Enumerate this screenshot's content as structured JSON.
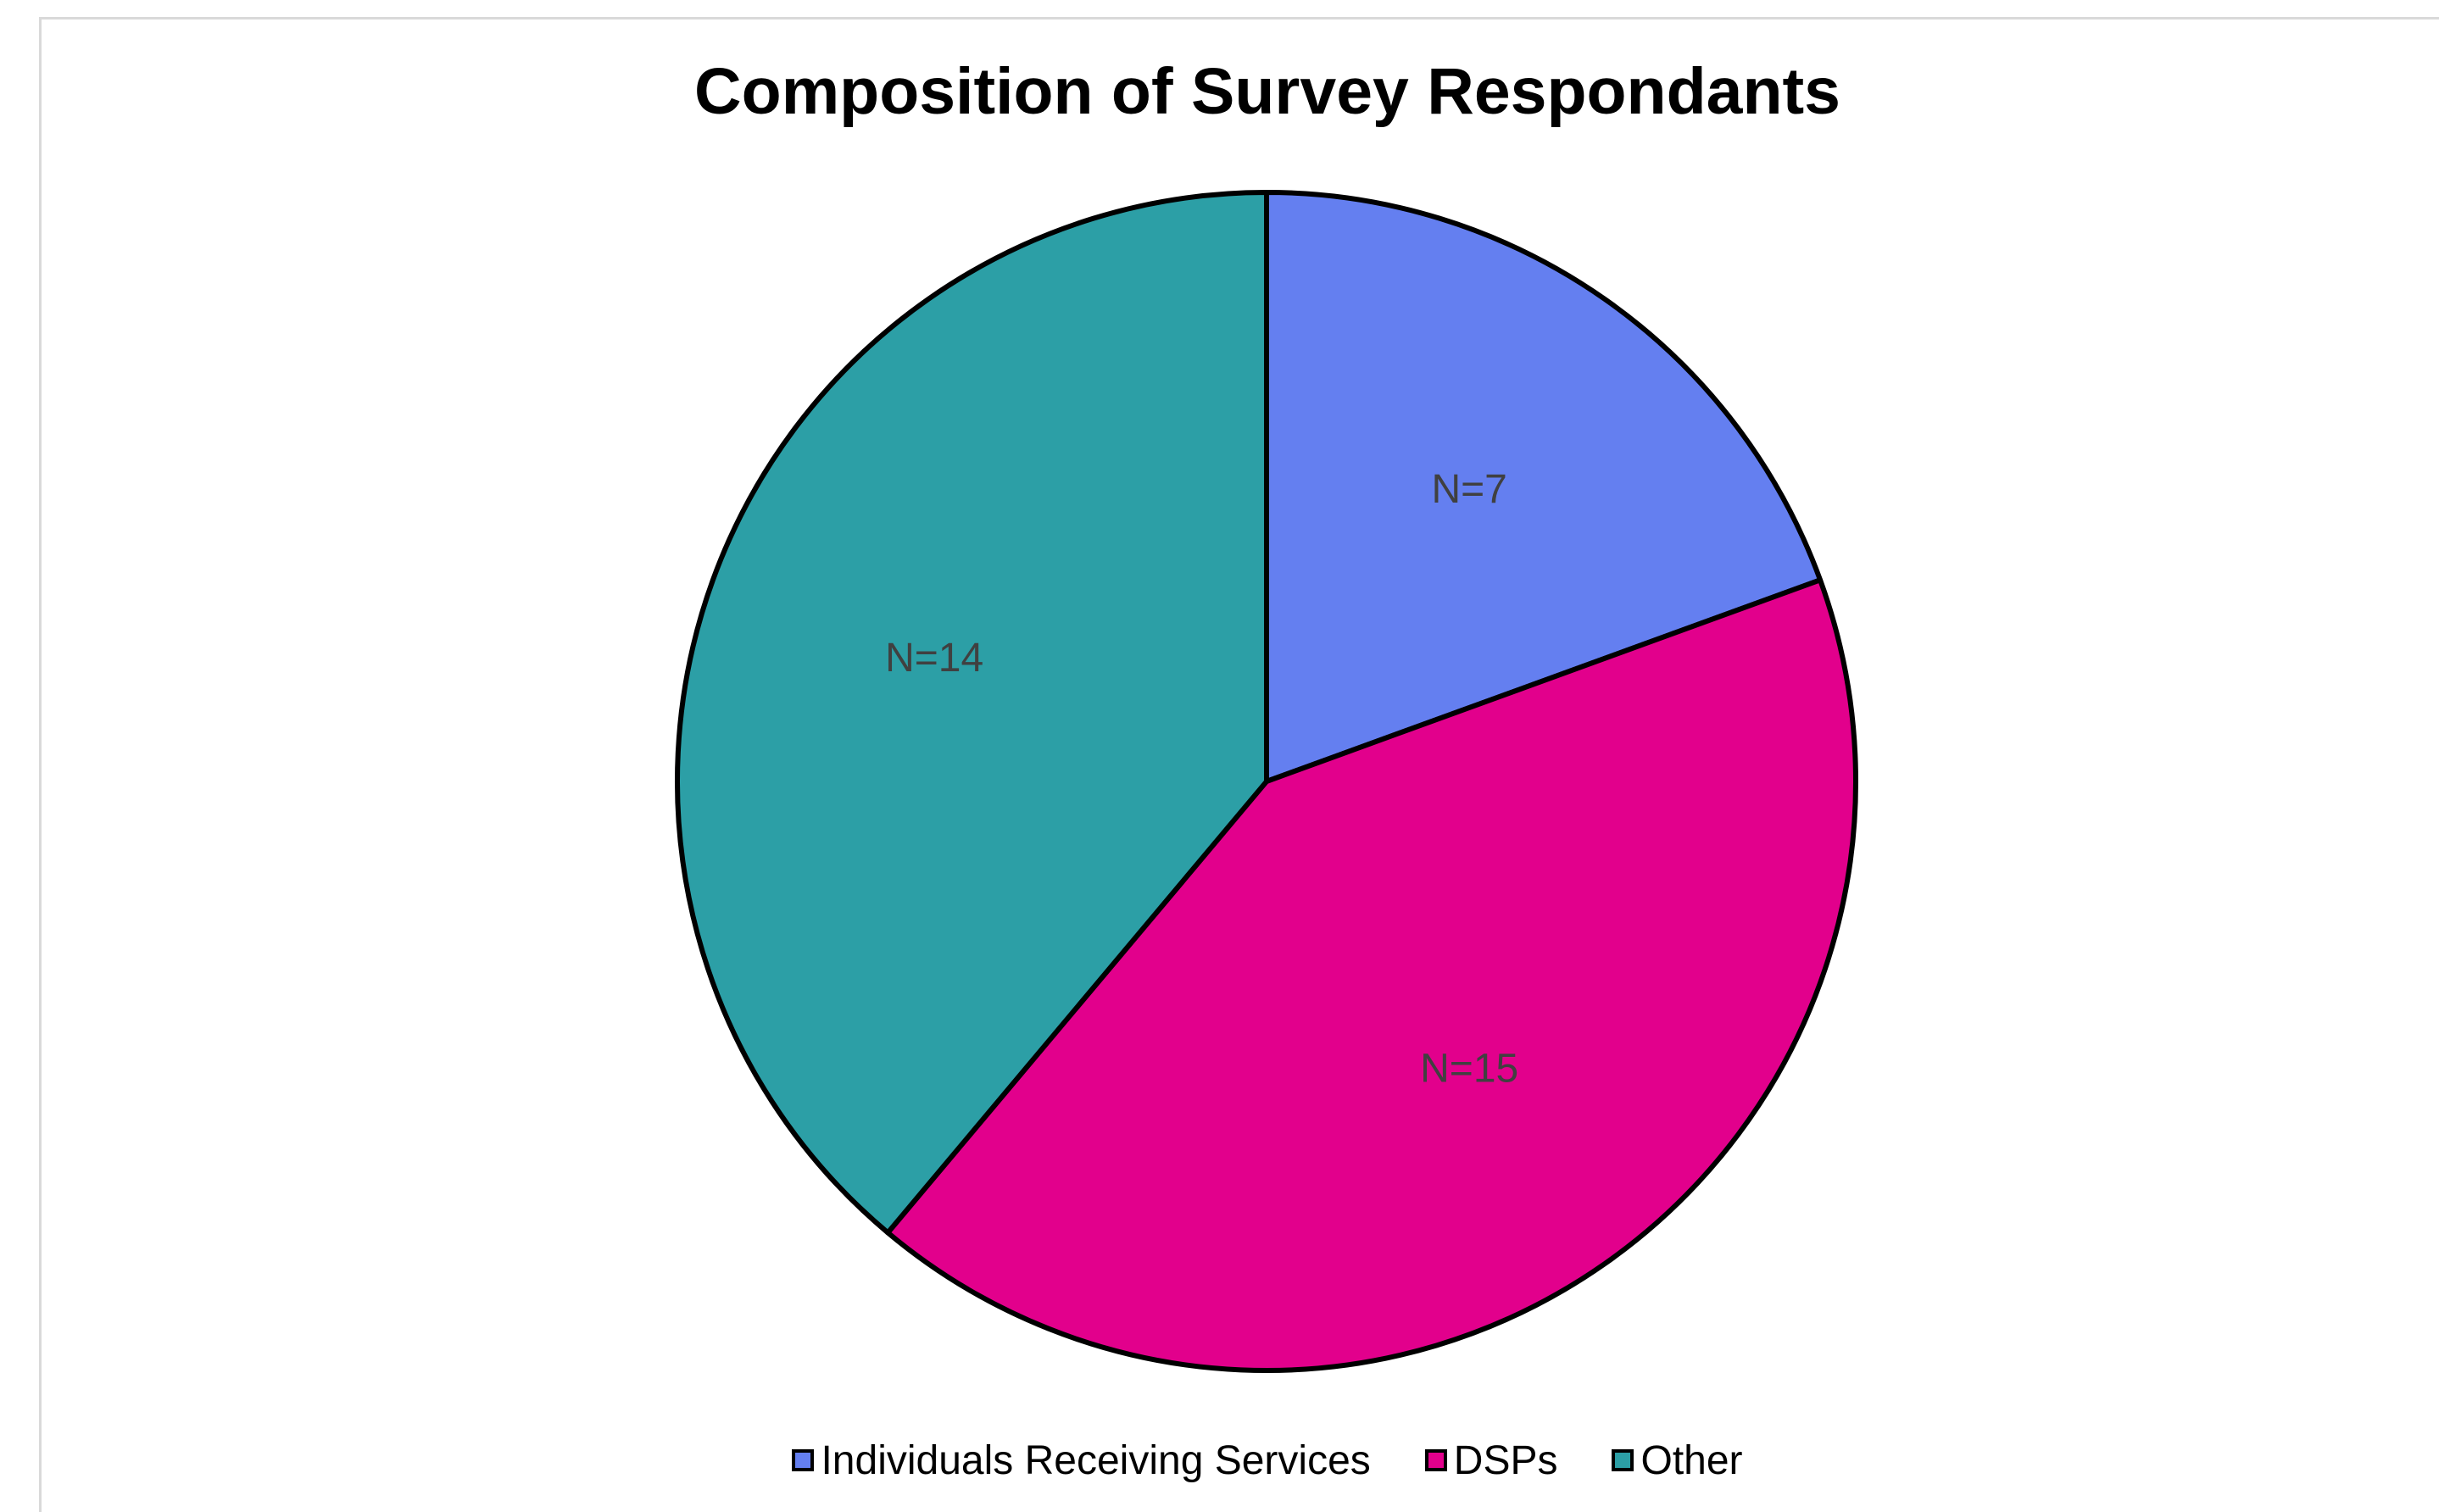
{
  "chart_data": {
    "type": "pie",
    "title": "Composition of Survey Respondants",
    "categories": [
      "Individuals Receiving Services",
      "DSPs",
      "Other"
    ],
    "values": [
      7,
      15,
      14
    ],
    "data_labels": [
      "N=7",
      "N=15",
      "N=14"
    ],
    "colors": [
      "#647FF0",
      "#E2008C",
      "#2C9FA6"
    ],
    "legend_position": "bottom"
  }
}
